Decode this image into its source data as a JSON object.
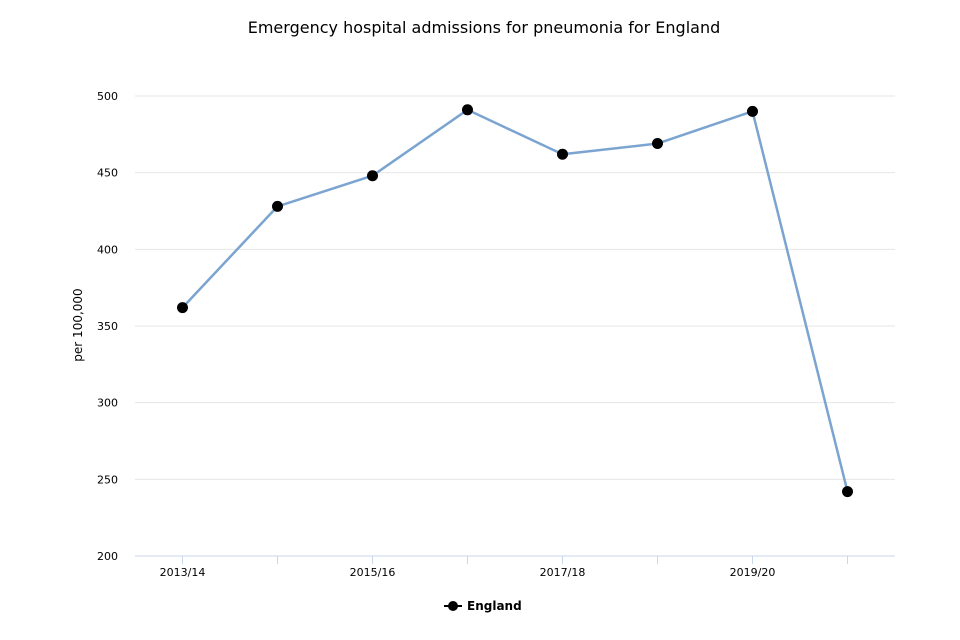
{
  "chart_data": {
    "type": "line",
    "title": "Emergency hospital admissions for pneumonia for England",
    "xlabel": "",
    "ylabel": "per 100,000",
    "categories": [
      "2013/14",
      "2014/15",
      "2015/16",
      "2016/17",
      "2017/18",
      "2018/19",
      "2019/20",
      "2020/21"
    ],
    "x_tick_labels": [
      "2013/14",
      "",
      "2015/16",
      "",
      "2017/18",
      "",
      "2019/20",
      ""
    ],
    "y_ticks": [
      200,
      250,
      300,
      350,
      400,
      450,
      500
    ],
    "ylim": [
      200,
      520
    ],
    "grid": true,
    "legend_position": "bottom-center",
    "series": [
      {
        "name": "England",
        "values": [
          362,
          428,
          448,
          491,
          462,
          469,
          490,
          242
        ],
        "line_color": "#7ba4d0",
        "marker_color": "#000000"
      }
    ]
  }
}
